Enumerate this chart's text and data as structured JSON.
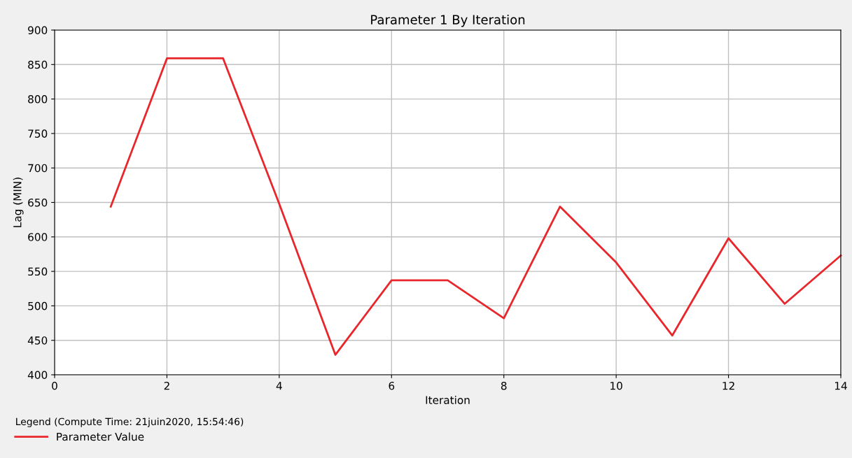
{
  "chart_data": {
    "type": "line",
    "title": "Parameter 1 By Iteration",
    "xlabel": "Iteration",
    "ylabel": "Lag (MIN)",
    "legend_title": "Legend (Compute Time: 21juin2020, 15:54:46)",
    "x": [
      1,
      2,
      3,
      4,
      5,
      6,
      7,
      8,
      9,
      10,
      11,
      12,
      13,
      14
    ],
    "series": [
      {
        "name": "Parameter Value",
        "color": "#e8262b",
        "values": [
          644,
          859,
          859,
          648,
          429,
          537,
          537,
          482,
          644,
          563,
          457,
          598,
          503,
          573
        ]
      }
    ],
    "xlim": [
      0,
      14
    ],
    "xticks": [
      0,
      2,
      4,
      6,
      8,
      10,
      12,
      14
    ],
    "ylim": [
      400,
      900
    ],
    "yticks": [
      400,
      450,
      500,
      550,
      600,
      650,
      700,
      750,
      800,
      850,
      900
    ],
    "grid": true,
    "legend": "bottom left",
    "marker": "none",
    "line_style": "solid"
  }
}
